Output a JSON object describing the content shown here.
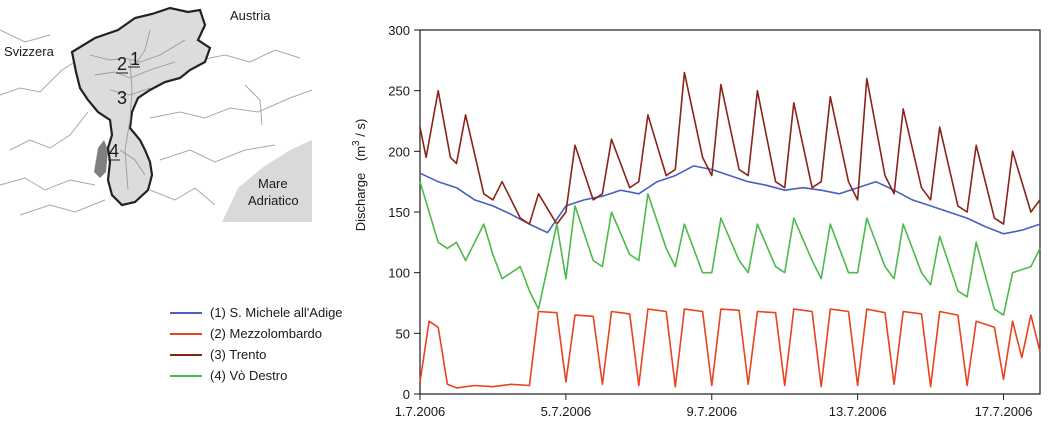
{
  "map": {
    "labels": {
      "austria": "Austria",
      "svizzera": "Svizzera",
      "mare_line1": "Mare",
      "mare_line2": "Adriatico"
    },
    "station_numbers": [
      "1",
      "2",
      "3",
      "4"
    ],
    "colors": {
      "basin_fill": "#dcdcdc",
      "border": "#222222",
      "rivers": "#aaaaaa",
      "sea": "#d9d9d9",
      "dark_patch": "#808080"
    }
  },
  "chart_data": {
    "type": "line",
    "ylabel_prefix": "Discharge",
    "ylabel_unit_base": "(m",
    "ylabel_unit_sup": "3",
    "ylabel_unit_tail": " / s)",
    "ylim": [
      0,
      300
    ],
    "yticks": [
      "0",
      "50",
      "100",
      "150",
      "200",
      "250",
      "300"
    ],
    "xlim": [
      "2006-07-01",
      "2006-07-18"
    ],
    "xticks": [
      {
        "label": "1.7.2006",
        "date": "2006-07-01"
      },
      {
        "label": "5.7.2006",
        "date": "2006-07-05"
      },
      {
        "label": "9.7.2006",
        "date": "2006-07-09"
      },
      {
        "label": "13.7.2006",
        "date": "2006-07-13"
      },
      {
        "label": "17.7.2006",
        "date": "2006-07-17"
      }
    ],
    "legend_position": "left",
    "grid": false,
    "series": [
      {
        "name": "(1) S. Michele all'Adige",
        "color": "#4a5fc1",
        "points": [
          [
            "2006-07-01",
            182
          ],
          [
            "2006-07-01T12:00",
            175
          ],
          [
            "2006-07-02",
            170
          ],
          [
            "2006-07-02T12:00",
            160
          ],
          [
            "2006-07-03",
            155
          ],
          [
            "2006-07-03T12:00",
            148
          ],
          [
            "2006-07-04",
            140
          ],
          [
            "2006-07-04T12:00",
            133
          ],
          [
            "2006-07-05",
            155
          ],
          [
            "2006-07-05T12:00",
            160
          ],
          [
            "2006-07-06",
            163
          ],
          [
            "2006-07-06T12:00",
            168
          ],
          [
            "2006-07-07",
            165
          ],
          [
            "2006-07-07T12:00",
            175
          ],
          [
            "2006-07-08",
            180
          ],
          [
            "2006-07-08T12:00",
            188
          ],
          [
            "2006-07-09",
            185
          ],
          [
            "2006-07-09T12:00",
            180
          ],
          [
            "2006-07-10",
            175
          ],
          [
            "2006-07-10T12:00",
            172
          ],
          [
            "2006-07-11",
            168
          ],
          [
            "2006-07-11T12:00",
            170
          ],
          [
            "2006-07-12",
            168
          ],
          [
            "2006-07-12T12:00",
            165
          ],
          [
            "2006-07-13",
            170
          ],
          [
            "2006-07-13T12:00",
            175
          ],
          [
            "2006-07-14",
            168
          ],
          [
            "2006-07-14T12:00",
            160
          ],
          [
            "2006-07-15",
            155
          ],
          [
            "2006-07-15T12:00",
            150
          ],
          [
            "2006-07-16",
            145
          ],
          [
            "2006-07-16T12:00",
            138
          ],
          [
            "2006-07-17",
            132
          ],
          [
            "2006-07-17T12:00",
            135
          ],
          [
            "2006-07-18",
            140
          ]
        ]
      },
      {
        "name": "(2) Mezzolombardo",
        "color": "#e8431e",
        "points": [
          [
            "2006-07-01",
            10
          ],
          [
            "2006-07-01T06:00",
            60
          ],
          [
            "2006-07-01T12:00",
            55
          ],
          [
            "2006-07-01T18:00",
            8
          ],
          [
            "2006-07-02",
            5
          ],
          [
            "2006-07-02T12:00",
            7
          ],
          [
            "2006-07-03",
            6
          ],
          [
            "2006-07-03T12:00",
            8
          ],
          [
            "2006-07-04",
            7
          ],
          [
            "2006-07-04T06:00",
            68
          ],
          [
            "2006-07-04T18:00",
            67
          ],
          [
            "2006-07-05",
            10
          ],
          [
            "2006-07-05T06:00",
            65
          ],
          [
            "2006-07-05T18:00",
            64
          ],
          [
            "2006-07-06",
            8
          ],
          [
            "2006-07-06T06:00",
            68
          ],
          [
            "2006-07-06T18:00",
            66
          ],
          [
            "2006-07-07",
            7
          ],
          [
            "2006-07-07T06:00",
            70
          ],
          [
            "2006-07-07T18:00",
            68
          ],
          [
            "2006-07-08",
            6
          ],
          [
            "2006-07-08T06:00",
            70
          ],
          [
            "2006-07-08T18:00",
            68
          ],
          [
            "2006-07-09",
            7
          ],
          [
            "2006-07-09T06:00",
            70
          ],
          [
            "2006-07-09T18:00",
            69
          ],
          [
            "2006-07-10",
            8
          ],
          [
            "2006-07-10T06:00",
            68
          ],
          [
            "2006-07-10T18:00",
            67
          ],
          [
            "2006-07-11",
            7
          ],
          [
            "2006-07-11T06:00",
            70
          ],
          [
            "2006-07-11T18:00",
            68
          ],
          [
            "2006-07-12",
            6
          ],
          [
            "2006-07-12T06:00",
            70
          ],
          [
            "2006-07-12T18:00",
            68
          ],
          [
            "2006-07-13",
            7
          ],
          [
            "2006-07-13T06:00",
            70
          ],
          [
            "2006-07-13T18:00",
            67
          ],
          [
            "2006-07-14",
            8
          ],
          [
            "2006-07-14T06:00",
            68
          ],
          [
            "2006-07-14T18:00",
            66
          ],
          [
            "2006-07-15",
            6
          ],
          [
            "2006-07-15T06:00",
            68
          ],
          [
            "2006-07-15T18:00",
            65
          ],
          [
            "2006-07-16",
            7
          ],
          [
            "2006-07-16T06:00",
            60
          ],
          [
            "2006-07-16T18:00",
            55
          ],
          [
            "2006-07-17",
            12
          ],
          [
            "2006-07-17T06:00",
            60
          ],
          [
            "2006-07-17T12:00",
            30
          ],
          [
            "2006-07-17T18:00",
            65
          ],
          [
            "2006-07-18",
            35
          ]
        ]
      },
      {
        "name": "(3) Trento",
        "color": "#8b2418",
        "points": [
          [
            "2006-07-01",
            220
          ],
          [
            "2006-07-01T04:00",
            195
          ],
          [
            "2006-07-01T12:00",
            250
          ],
          [
            "2006-07-01T20:00",
            195
          ],
          [
            "2006-07-02",
            190
          ],
          [
            "2006-07-02T06:00",
            230
          ],
          [
            "2006-07-02T18:00",
            165
          ],
          [
            "2006-07-03",
            160
          ],
          [
            "2006-07-03T06:00",
            175
          ],
          [
            "2006-07-03T18:00",
            145
          ],
          [
            "2006-07-04",
            140
          ],
          [
            "2006-07-04T06:00",
            165
          ],
          [
            "2006-07-04T18:00",
            140
          ],
          [
            "2006-07-05",
            150
          ],
          [
            "2006-07-05T06:00",
            205
          ],
          [
            "2006-07-05T18:00",
            160
          ],
          [
            "2006-07-06",
            165
          ],
          [
            "2006-07-06T06:00",
            210
          ],
          [
            "2006-07-06T18:00",
            170
          ],
          [
            "2006-07-07",
            175
          ],
          [
            "2006-07-07T06:00",
            230
          ],
          [
            "2006-07-07T18:00",
            180
          ],
          [
            "2006-07-08",
            185
          ],
          [
            "2006-07-08T06:00",
            265
          ],
          [
            "2006-07-08T18:00",
            195
          ],
          [
            "2006-07-09",
            180
          ],
          [
            "2006-07-09T06:00",
            255
          ],
          [
            "2006-07-09T18:00",
            185
          ],
          [
            "2006-07-10",
            180
          ],
          [
            "2006-07-10T06:00",
            250
          ],
          [
            "2006-07-10T18:00",
            175
          ],
          [
            "2006-07-11",
            170
          ],
          [
            "2006-07-11T06:00",
            240
          ],
          [
            "2006-07-11T18:00",
            170
          ],
          [
            "2006-07-12",
            175
          ],
          [
            "2006-07-12T06:00",
            245
          ],
          [
            "2006-07-12T18:00",
            175
          ],
          [
            "2006-07-13",
            160
          ],
          [
            "2006-07-13T06:00",
            260
          ],
          [
            "2006-07-13T18:00",
            180
          ],
          [
            "2006-07-14",
            165
          ],
          [
            "2006-07-14T06:00",
            235
          ],
          [
            "2006-07-14T18:00",
            170
          ],
          [
            "2006-07-15",
            160
          ],
          [
            "2006-07-15T06:00",
            220
          ],
          [
            "2006-07-15T18:00",
            155
          ],
          [
            "2006-07-16",
            150
          ],
          [
            "2006-07-16T06:00",
            205
          ],
          [
            "2006-07-16T18:00",
            145
          ],
          [
            "2006-07-17",
            140
          ],
          [
            "2006-07-17T06:00",
            200
          ],
          [
            "2006-07-17T18:00",
            150
          ],
          [
            "2006-07-18",
            160
          ]
        ]
      },
      {
        "name": "(4) Vò Destro",
        "color": "#4cba4c",
        "points": [
          [
            "2006-07-01",
            175
          ],
          [
            "2006-07-01T06:00",
            150
          ],
          [
            "2006-07-01T12:00",
            125
          ],
          [
            "2006-07-01T18:00",
            120
          ],
          [
            "2006-07-02",
            125
          ],
          [
            "2006-07-02T06:00",
            110
          ],
          [
            "2006-07-02T18:00",
            140
          ],
          [
            "2006-07-03",
            115
          ],
          [
            "2006-07-03T06:00",
            95
          ],
          [
            "2006-07-03T18:00",
            105
          ],
          [
            "2006-07-04",
            85
          ],
          [
            "2006-07-04T06:00",
            70
          ],
          [
            "2006-07-04T18:00",
            140
          ],
          [
            "2006-07-05",
            95
          ],
          [
            "2006-07-05T06:00",
            155
          ],
          [
            "2006-07-05T18:00",
            110
          ],
          [
            "2006-07-06",
            105
          ],
          [
            "2006-07-06T06:00",
            150
          ],
          [
            "2006-07-06T18:00",
            115
          ],
          [
            "2006-07-07",
            110
          ],
          [
            "2006-07-07T06:00",
            165
          ],
          [
            "2006-07-07T18:00",
            120
          ],
          [
            "2006-07-08",
            105
          ],
          [
            "2006-07-08T06:00",
            140
          ],
          [
            "2006-07-08T18:00",
            100
          ],
          [
            "2006-07-09",
            100
          ],
          [
            "2006-07-09T06:00",
            145
          ],
          [
            "2006-07-09T18:00",
            110
          ],
          [
            "2006-07-10",
            100
          ],
          [
            "2006-07-10T06:00",
            140
          ],
          [
            "2006-07-10T18:00",
            105
          ],
          [
            "2006-07-11",
            100
          ],
          [
            "2006-07-11T06:00",
            145
          ],
          [
            "2006-07-11T18:00",
            110
          ],
          [
            "2006-07-12",
            95
          ],
          [
            "2006-07-12T06:00",
            140
          ],
          [
            "2006-07-12T18:00",
            100
          ],
          [
            "2006-07-13",
            100
          ],
          [
            "2006-07-13T06:00",
            145
          ],
          [
            "2006-07-13T18:00",
            105
          ],
          [
            "2006-07-14",
            95
          ],
          [
            "2006-07-14T06:00",
            140
          ],
          [
            "2006-07-14T18:00",
            100
          ],
          [
            "2006-07-15",
            90
          ],
          [
            "2006-07-15T06:00",
            130
          ],
          [
            "2006-07-15T18:00",
            85
          ],
          [
            "2006-07-16",
            80
          ],
          [
            "2006-07-16T06:00",
            125
          ],
          [
            "2006-07-16T18:00",
            70
          ],
          [
            "2006-07-17",
            65
          ],
          [
            "2006-07-17T06:00",
            100
          ],
          [
            "2006-07-17T18:00",
            105
          ],
          [
            "2006-07-18",
            120
          ]
        ]
      }
    ]
  }
}
